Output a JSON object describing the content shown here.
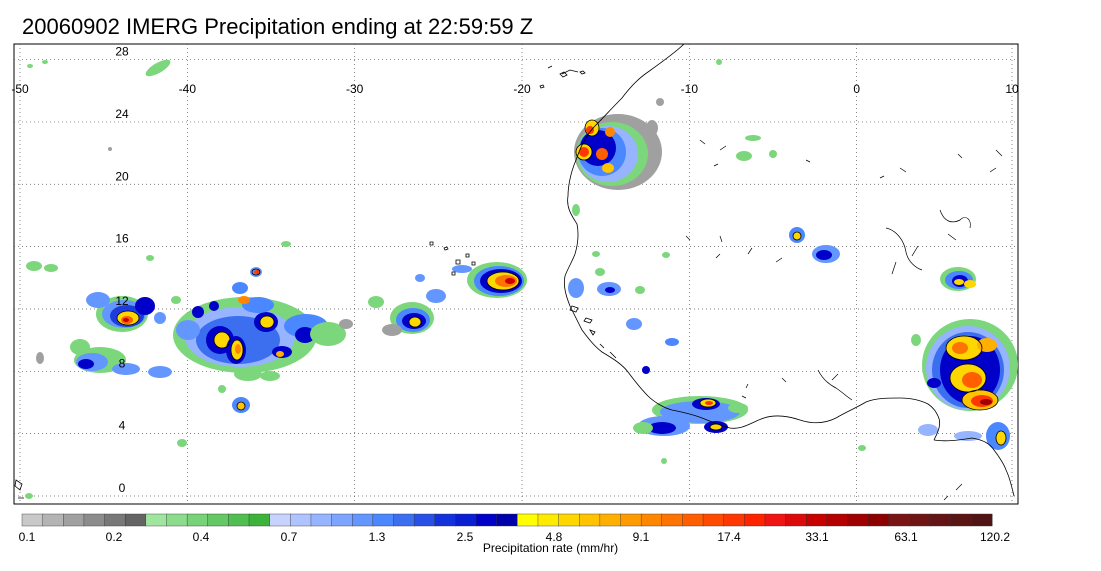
{
  "title": "20060902 IMERG Precipitation ending at 22:59:59 Z",
  "map": {
    "longitude_labels": [
      "-50",
      "-40",
      "-30",
      "-20",
      "-10",
      "0",
      "10"
    ],
    "latitude_labels": [
      "28",
      "24",
      "20",
      "16",
      "12",
      "8",
      "4",
      "0"
    ],
    "longitude_values": [
      -50,
      -40,
      -30,
      -20,
      -10,
      0,
      10
    ],
    "latitude_values": [
      28,
      24,
      20,
      16,
      12,
      8,
      4,
      0
    ],
    "lon_range": [
      -50,
      10
    ],
    "lat_range": [
      0,
      29
    ],
    "grid": "dotted",
    "coastline_color": "#000000"
  },
  "colorbar": {
    "label": "Precipitation rate (mm/hr)",
    "tick_labels": [
      "0.1",
      "0.2",
      "0.4",
      "0.7",
      "1.3",
      "2.5",
      "4.8",
      "9.1",
      "17.4",
      "33.1",
      "63.1",
      "120.2"
    ],
    "colors": [
      "#c8c8c8",
      "#b4b4b4",
      "#a0a0a0",
      "#8c8c8c",
      "#787878",
      "#646464",
      "#a0e6a0",
      "#8cdc8c",
      "#78d278",
      "#64c864",
      "#50be50",
      "#3cb43c",
      "#c8d2ff",
      "#afc3ff",
      "#96b4ff",
      "#7da5ff",
      "#6496ff",
      "#4b87ff",
      "#3c6ef0",
      "#2850e6",
      "#1432dc",
      "#0a1ed2",
      "#0000c8",
      "#0000aa",
      "#ffff00",
      "#ffeb00",
      "#ffd700",
      "#ffc300",
      "#ffaf00",
      "#ff9b00",
      "#ff8700",
      "#ff7300",
      "#ff5f00",
      "#ff4b00",
      "#ff3700",
      "#ff2300",
      "#f01414",
      "#dc0a0a",
      "#c80000",
      "#b40000",
      "#a00000",
      "#8c0000",
      "#781414",
      "#6e1414",
      "#641414",
      "#5a1414",
      "#501414"
    ]
  },
  "precipitation_cells": [
    {
      "lon": -43.5,
      "lat": 11.7,
      "peak": "17.4"
    },
    {
      "lon": -38.6,
      "lat": 10.2,
      "peak": "9.1"
    },
    {
      "lon": -36.7,
      "lat": 10.9,
      "peak": "9.1"
    },
    {
      "lon": -46.0,
      "lat": 9.2,
      "peak": "2.5"
    },
    {
      "lon": -39.2,
      "lat": 6.2,
      "peak": "4.8"
    },
    {
      "lon": -36.0,
      "lat": 14.9,
      "peak": "9.1"
    },
    {
      "lon": -24.9,
      "lat": 11.6,
      "peak": "4.8"
    },
    {
      "lon": -20.7,
      "lat": 14.4,
      "peak": "33.1"
    },
    {
      "lon": -14.9,
      "lat": 23.2,
      "peak": "17.4"
    },
    {
      "lon": -14.3,
      "lat": 21.7,
      "peak": "9.1"
    },
    {
      "lon": -11.7,
      "lat": 14.0,
      "peak": "2.5"
    },
    {
      "lon": -8.3,
      "lat": 5.5,
      "peak": "17.4"
    },
    {
      "lon": -7.9,
      "lat": 4.4,
      "peak": "9.1"
    },
    {
      "lon": -3.1,
      "lat": 17.9,
      "peak": "4.8"
    },
    {
      "lon": -1.1,
      "lat": 16.4,
      "peak": "2.5"
    },
    {
      "lon": 7.0,
      "lat": 14.6,
      "peak": "9.1"
    },
    {
      "lon": 7.8,
      "lat": 10.0,
      "peak": "17.4"
    },
    {
      "lon": 8.3,
      "lat": 7.8,
      "peak": "33.1"
    },
    {
      "lon": 8.9,
      "lat": 6.4,
      "peak": "63.1"
    },
    {
      "lon": 9.8,
      "lat": 4.1,
      "peak": "9.1"
    }
  ]
}
